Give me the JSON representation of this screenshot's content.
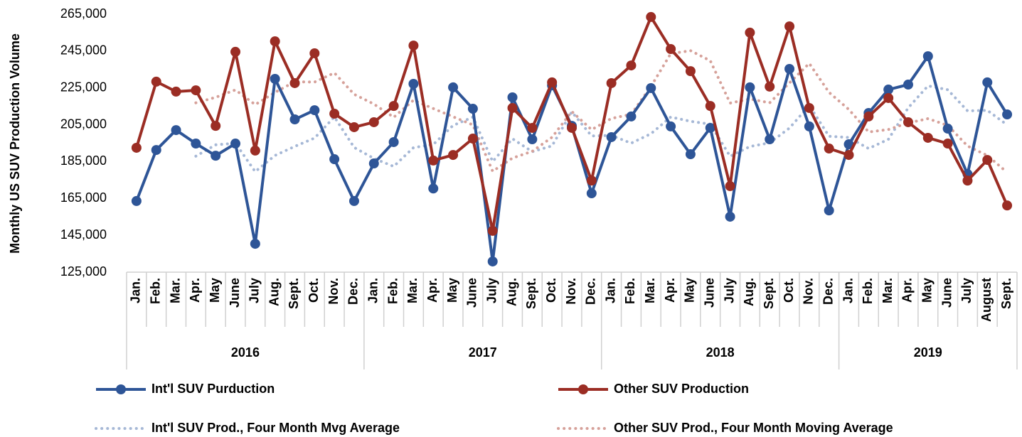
{
  "chart_data": {
    "type": "line",
    "y_label": "Monthly US SUV Production Volume",
    "categories": [
      "Jan.",
      "Feb.",
      "Mar.",
      "Apr.",
      "May",
      "June",
      "July",
      "Aug.",
      "Sept.",
      "Oct.",
      "Nov.",
      "Dec.",
      "Jan.",
      "Feb.",
      "Mar.",
      "Apr.",
      "May",
      "June",
      "July",
      "Aug.",
      "Sept.",
      "Oct.",
      "Nov.",
      "Dec.",
      "Jan.",
      "Feb.",
      "Mar.",
      "Apr.",
      "May",
      "June",
      "July",
      "Aug.",
      "Sept.",
      "Oct.",
      "Nov.",
      "Dec.",
      "Jan.",
      "Feb.",
      "Mar.",
      "Apr.",
      "May",
      "June",
      "July",
      "August",
      "Sept."
    ],
    "category_groups": [
      {
        "label": "2016",
        "span": 12
      },
      {
        "label": "2017",
        "span": 12
      },
      {
        "label": "2018",
        "span": 12
      },
      {
        "label": "2019",
        "span": 9
      }
    ],
    "ylim": [
      125000,
      265000
    ],
    "yticks": [
      {
        "value": 125000,
        "label": "125,000"
      },
      {
        "value": 145000,
        "label": "145,000"
      },
      {
        "value": 165000,
        "label": "165,000"
      },
      {
        "value": 185000,
        "label": "185,000"
      },
      {
        "value": 205000,
        "label": "205,000"
      },
      {
        "value": 225000,
        "label": "225,000"
      },
      {
        "value": 245000,
        "label": "245,000"
      },
      {
        "value": 265000,
        "label": "265,000"
      }
    ],
    "grid": false,
    "legend": "bottom",
    "series": [
      {
        "name": "Int'l SUV Purduction",
        "color": "#2e5597",
        "style": "solid",
        "markers": true,
        "values": [
          163600,
          191300,
          202100,
          194800,
          188200,
          194800,
          140400,
          229900,
          207900,
          212900,
          186300,
          163600,
          184000,
          195600,
          227200,
          170400,
          225300,
          213700,
          130800,
          219900,
          197100,
          226400,
          204400,
          167800,
          198300,
          209500,
          224900,
          204100,
          189000,
          203300,
          155100,
          225300,
          197100,
          235300,
          204100,
          158500,
          194400,
          211400,
          224100,
          226800,
          242200,
          202900,
          178200,
          228000,
          210600
        ]
      },
      {
        "name": "Other SUV Production",
        "color": "#9b2d24",
        "style": "solid",
        "markers": true,
        "values": [
          192500,
          228400,
          223000,
          223700,
          204400,
          244600,
          191000,
          250300,
          227600,
          243800,
          211000,
          203700,
          206400,
          215200,
          248000,
          185600,
          188600,
          197500,
          147400,
          214100,
          203300,
          228000,
          203300,
          174700,
          227600,
          237200,
          263500,
          246100,
          234100,
          215200,
          171700,
          255000,
          225700,
          258400,
          214100,
          192100,
          188600,
          209500,
          219500,
          206400,
          197900,
          194800,
          174700,
          185900,
          161200
        ]
      },
      {
        "name": "Int'l SUV Prod., Four Month Mvg Average",
        "color": "#a6b8d6",
        "style": "dotted",
        "markers": false,
        "values": [
          null,
          null,
          null,
          187950,
          194100,
          194975,
          179550,
          188325,
          193250,
          197775,
          209250,
          192675,
          186700,
          182375,
          192600,
          194300,
          204625,
          209150,
          185050,
          197425,
          190375,
          193550,
          211950,
          198925,
          199225,
          195000,
          200125,
          209200,
          206875,
          205325,
          187875,
          193175,
          195200,
          203200,
          215450,
          198750,
          198075,
          192100,
          197100,
          214175,
          226125,
          224000,
          212525,
          212825,
          204925
        ]
      },
      {
        "name": "Other SUV Prod., Four Month Moving Average",
        "color": "#d6a19a",
        "style": "dotted",
        "markers": false,
        "values": [
          null,
          null,
          null,
          216900,
          219875,
          223925,
          215925,
          222575,
          228375,
          228175,
          233175,
          221525,
          216225,
          209075,
          218325,
          213800,
          209350,
          204925,
          179775,
          186900,
          190575,
          198200,
          212175,
          202325,
          208400,
          210700,
          225750,
          243600,
          245225,
          239725,
          216775,
          219000,
          216900,
          227700,
          238300,
          222575,
          213300,
          201075,
          202425,
          206000,
          208325,
          204650,
          193450,
          188325,
          179150
        ]
      }
    ]
  }
}
